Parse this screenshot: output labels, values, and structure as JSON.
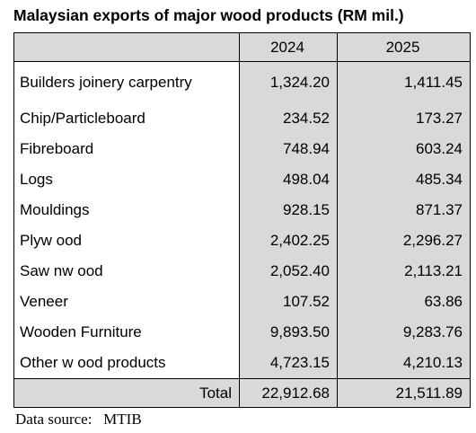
{
  "title": "Malaysian exports of major wood products (RM mil.)",
  "table": {
    "header": [
      "2024",
      "2025"
    ],
    "rows": [
      [
        "Builders joinery carpentry",
        "1,324.20",
        "1,411.45"
      ],
      [
        "Chip/Particleboard",
        "234.52",
        "173.27"
      ],
      [
        "Fibreboard",
        "748.94",
        "603.24"
      ],
      [
        "Logs",
        "498.04",
        "485.34"
      ],
      [
        "Mouldings",
        "928.15",
        "871.37"
      ],
      [
        "Plyw ood",
        "2,402.25",
        "2,296.27"
      ],
      [
        "Saw nw ood",
        "2,052.40",
        "2,113.21"
      ],
      [
        "Veneer",
        "107.52",
        "63.86"
      ],
      [
        "Wooden Furniture",
        "9,893.50",
        "9,283.76"
      ],
      [
        "Other w ood products",
        "4,723.15",
        "4,210.13"
      ]
    ],
    "total": {
      "label": "Total",
      "values": [
        "22,912.68",
        "21,511.89"
      ]
    }
  },
  "source": "Data source:   MTIB"
}
